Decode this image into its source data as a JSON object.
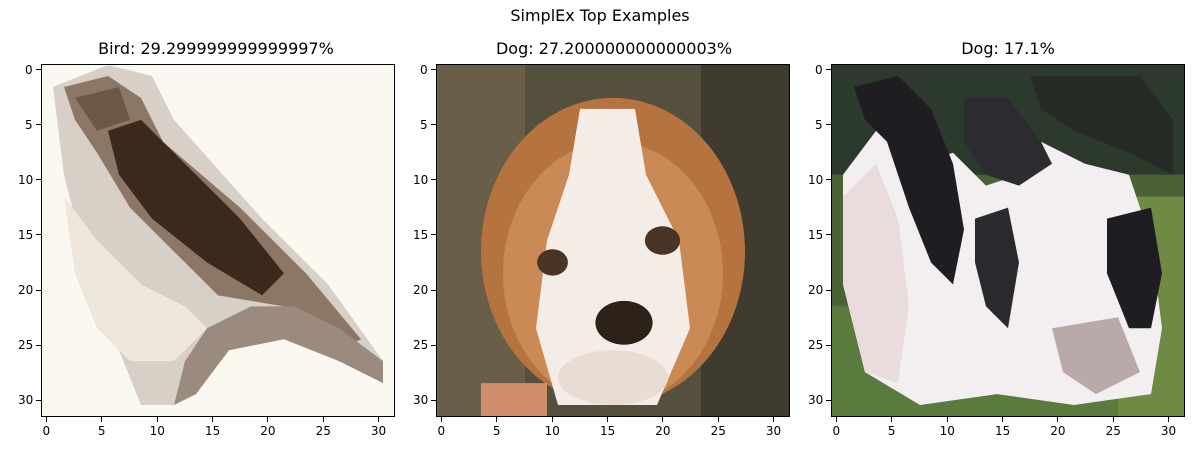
{
  "figure": {
    "title": "SimplEx Top Examples"
  },
  "chart_data": [
    {
      "type": "heatmap",
      "title": "Bird: 29.299999999999997%",
      "image": "pixelated photo of a brown and white bird perched on a branch",
      "xlim": [
        -0.5,
        31.5
      ],
      "ylim": [
        31.5,
        -0.5
      ],
      "xticks": [
        0,
        5,
        10,
        15,
        20,
        25,
        30
      ],
      "yticks": [
        0,
        5,
        10,
        15,
        20,
        25,
        30
      ],
      "grid": false,
      "colors": {
        "background": "#fbf7f1",
        "body": "#3a2a1d",
        "mid": "#8c7766",
        "light": "#d8cfc6"
      }
    },
    {
      "type": "heatmap",
      "title": "Dog: 27.200000000000003%",
      "image": "pixelated close-up of a brown and white puppy face",
      "xlim": [
        -0.5,
        31.5
      ],
      "ylim": [
        31.5,
        -0.5
      ],
      "xticks": [
        0,
        5,
        10,
        15,
        20,
        25,
        30
      ],
      "yticks": [
        0,
        5,
        10,
        15,
        20,
        25,
        30
      ],
      "grid": false,
      "colors": {
        "background": "#55503e",
        "fur": "#b5733f",
        "white": "#f4ece6",
        "dark": "#2c2218"
      }
    },
    {
      "type": "heatmap",
      "title": "Dog: 17.1%",
      "image": "pixelated photo of a black and white dog on grass",
      "xlim": [
        -0.5,
        31.5
      ],
      "ylim": [
        31.5,
        -0.5
      ],
      "xticks": [
        0,
        5,
        10,
        15,
        20,
        25,
        30
      ],
      "yticks": [
        0,
        5,
        10,
        15,
        20,
        25,
        30
      ],
      "grid": false,
      "colors": {
        "background": "#2c3a2e",
        "grass": "#5b7a3e",
        "black": "#1e1e22",
        "white": "#f3eef0"
      }
    }
  ]
}
